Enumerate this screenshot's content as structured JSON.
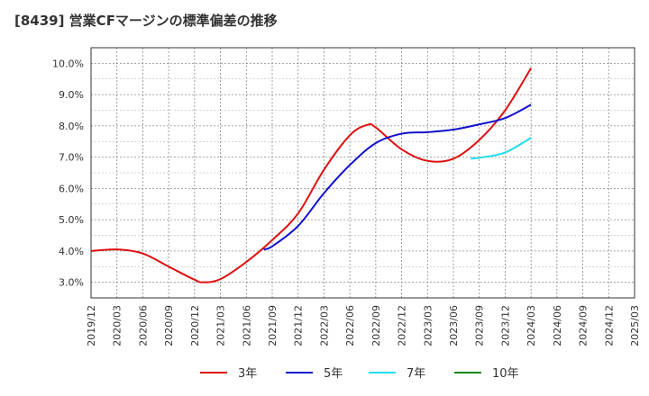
{
  "chart_data": {
    "type": "line",
    "title": "[8439]  営業CFマージンの標準偏差の推移",
    "xlabel": "",
    "ylabel": "",
    "x_ticks": [
      "2019/12",
      "2020/03",
      "2020/06",
      "2020/09",
      "2020/12",
      "2021/03",
      "2021/06",
      "2021/09",
      "2021/12",
      "2022/03",
      "2022/06",
      "2022/09",
      "2022/12",
      "2023/03",
      "2023/06",
      "2023/09",
      "2023/12",
      "2024/03",
      "2024/06",
      "2024/09",
      "2024/12",
      "2025/03"
    ],
    "y_ticks": [
      "3.0%",
      "4.0%",
      "5.0%",
      "6.0%",
      "7.0%",
      "8.0%",
      "9.0%",
      "10.0%"
    ],
    "ylim": [
      2.5,
      10.5
    ],
    "xlim": [
      "2019/12",
      "2025/03"
    ],
    "grid": true,
    "legend_position": "bottom",
    "series": [
      {
        "name": "3年",
        "color": "#dd1111",
        "points": [
          [
            "2019/12",
            4.0
          ],
          [
            "2020/03",
            4.05
          ],
          [
            "2020/06",
            3.92
          ],
          [
            "2020/09",
            3.5
          ],
          [
            "2020/12",
            3.08
          ],
          [
            "2021/01",
            3.0
          ],
          [
            "2021/03",
            3.1
          ],
          [
            "2021/06",
            3.65
          ],
          [
            "2021/09",
            4.35
          ],
          [
            "2021/12",
            5.2
          ],
          [
            "2022/03",
            6.6
          ],
          [
            "2022/06",
            7.7
          ],
          [
            "2022/08",
            8.03
          ],
          [
            "2022/09",
            7.95
          ],
          [
            "2022/12",
            7.25
          ],
          [
            "2023/03",
            6.88
          ],
          [
            "2023/06",
            6.95
          ],
          [
            "2023/09",
            7.55
          ],
          [
            "2023/12",
            8.5
          ],
          [
            "2024/03",
            9.85
          ]
        ]
      },
      {
        "name": "5年",
        "color": "#1111cc",
        "points": [
          [
            "2021/08",
            4.05
          ],
          [
            "2021/09",
            4.15
          ],
          [
            "2021/12",
            4.8
          ],
          [
            "2022/03",
            5.85
          ],
          [
            "2022/06",
            6.75
          ],
          [
            "2022/09",
            7.45
          ],
          [
            "2022/12",
            7.75
          ],
          [
            "2023/03",
            7.8
          ],
          [
            "2023/06",
            7.88
          ],
          [
            "2023/09",
            8.05
          ],
          [
            "2023/12",
            8.25
          ],
          [
            "2024/03",
            8.68
          ]
        ]
      },
      {
        "name": "7年",
        "color": "#22ddee",
        "points": [
          [
            "2023/08",
            6.95
          ],
          [
            "2023/09",
            6.98
          ],
          [
            "2023/12",
            7.15
          ],
          [
            "2024/03",
            7.62
          ]
        ]
      },
      {
        "name": "10年",
        "color": "#118811",
        "points": []
      }
    ]
  }
}
